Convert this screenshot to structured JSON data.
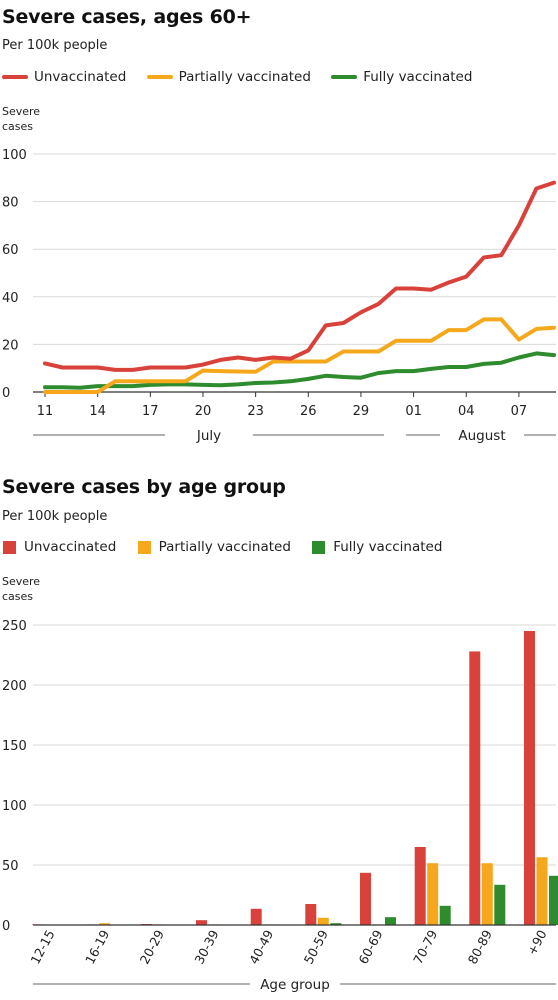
{
  "colors": {
    "unvaccinated": "#d9423b",
    "partial": "#f5a81c",
    "fully": "#2e8b2e",
    "grid": "#d9d9d9",
    "axis": "#333333"
  },
  "chart_data": [
    {
      "type": "line",
      "title": "Severe cases, ages 60+",
      "subtitle": "Per 100k people",
      "ylabel": "Severe\ncases",
      "ylim": [
        0,
        100
      ],
      "yticks": [
        0,
        20,
        40,
        60,
        80,
        100
      ],
      "grid": true,
      "legend": "top-left",
      "x": [
        "Jul 11",
        "Jul 12",
        "Jul 13",
        "Jul 14",
        "Jul 15",
        "Jul 16",
        "Jul 17",
        "Jul 18",
        "Jul 19",
        "Jul 20",
        "Jul 21",
        "Jul 22",
        "Jul 23",
        "Jul 24",
        "Jul 25",
        "Jul 26",
        "Jul 27",
        "Jul 28",
        "Jul 29",
        "Jul 30",
        "Jul 31",
        "Aug 01",
        "Aug 02",
        "Aug 03",
        "Aug 04",
        "Aug 05",
        "Aug 06",
        "Aug 07",
        "Aug 08",
        "Aug 09"
      ],
      "xtick_labels": [
        {
          "index": 0,
          "label": "11"
        },
        {
          "index": 3,
          "label": "14"
        },
        {
          "index": 6,
          "label": "17"
        },
        {
          "index": 9,
          "label": "20"
        },
        {
          "index": 12,
          "label": "23"
        },
        {
          "index": 15,
          "label": "26"
        },
        {
          "index": 18,
          "label": "29"
        },
        {
          "index": 21,
          "label": "01"
        },
        {
          "index": 24,
          "label": "04"
        },
        {
          "index": 27,
          "label": "07"
        }
      ],
      "month_labels": [
        "July",
        "August"
      ],
      "series": [
        {
          "name": "Unvaccinated",
          "color_key": "unvaccinated",
          "values": [
            12,
            10.3,
            10.3,
            10.3,
            9.3,
            9.3,
            10.3,
            10.3,
            10.3,
            11.5,
            13.5,
            14.5,
            13.5,
            14.5,
            14,
            17.5,
            28,
            29,
            33.5,
            37,
            43.5,
            43.5,
            43,
            46,
            48.5,
            56.5,
            57.5,
            70,
            85.5,
            88
          ]
        },
        {
          "name": "Partially vaccinated",
          "color_key": "partial",
          "values": [
            0,
            0,
            0,
            0,
            4.5,
            4.5,
            4.5,
            4.5,
            4.5,
            9,
            8.8,
            8.6,
            8.5,
            12.8,
            12.8,
            12.8,
            12.8,
            17,
            17,
            17,
            21.5,
            21.5,
            21.5,
            26,
            26,
            30.5,
            30.5,
            22,
            26.5,
            27
          ]
        },
        {
          "name": "Fully vaccinated",
          "color_key": "fully",
          "values": [
            2,
            2,
            1.8,
            2.5,
            2.5,
            2.5,
            3,
            3.2,
            3.2,
            3,
            2.8,
            3.2,
            3.8,
            4,
            4.5,
            5.5,
            6.8,
            6.3,
            6,
            8,
            8.8,
            8.8,
            9.7,
            10.5,
            10.5,
            11.8,
            12.3,
            14.5,
            16.2,
            15.5
          ]
        }
      ]
    },
    {
      "type": "bar",
      "title": "Severe cases by age group",
      "subtitle": "Per 100k people",
      "ylabel": "Severe\ncases",
      "xlabel": "Age group",
      "ylim": [
        0,
        250
      ],
      "yticks": [
        0,
        50,
        100,
        150,
        200,
        250
      ],
      "grid": true,
      "legend": "top-left",
      "categories": [
        "12-15",
        "16-19",
        "20-29",
        "30-39",
        "40-49",
        "50-59",
        "60-69",
        "70-79",
        "80-89",
        "+90"
      ],
      "series": [
        {
          "name": "Unvaccinated",
          "color_key": "unvaccinated",
          "values": [
            0.5,
            0.5,
            0.8,
            4,
            13.5,
            17.5,
            43.5,
            65,
            228,
            245
          ]
        },
        {
          "name": "Partially vaccinated",
          "color_key": "partial",
          "values": [
            0.3,
            1.5,
            0.5,
            0.5,
            0.5,
            6,
            0.5,
            51.5,
            51.5,
            56.5
          ]
        },
        {
          "name": "Fully vaccinated",
          "color_key": "fully",
          "values": [
            0,
            0,
            0,
            0.3,
            0.3,
            1.5,
            6.5,
            16,
            33.5,
            41
          ]
        }
      ]
    }
  ]
}
